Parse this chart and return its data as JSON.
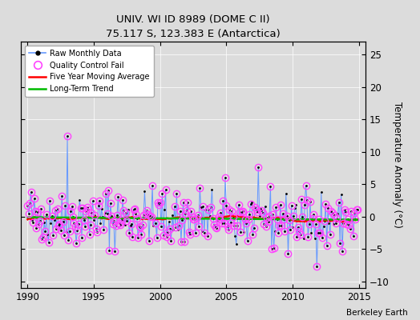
{
  "title": "UNIV. WI ID 8989 (DOME C II)",
  "subtitle": "75.117 S, 123.383 E (Antarctica)",
  "ylabel": "Temperature Anomaly (°C)",
  "credit": "Berkeley Earth",
  "xlim": [
    1989.5,
    2015.5
  ],
  "ylim": [
    -11,
    27
  ],
  "yticks": [
    -10,
    -5,
    0,
    5,
    10,
    15,
    20,
    25
  ],
  "xticks": [
    1990,
    1995,
    2000,
    2005,
    2010,
    2015
  ],
  "bg_color": "#dcdcdc",
  "raw_color": "#6699ff",
  "ma_color": "#ff0000",
  "trend_color": "#00bb00",
  "qc_color": "#ff44ff",
  "seed": 42
}
